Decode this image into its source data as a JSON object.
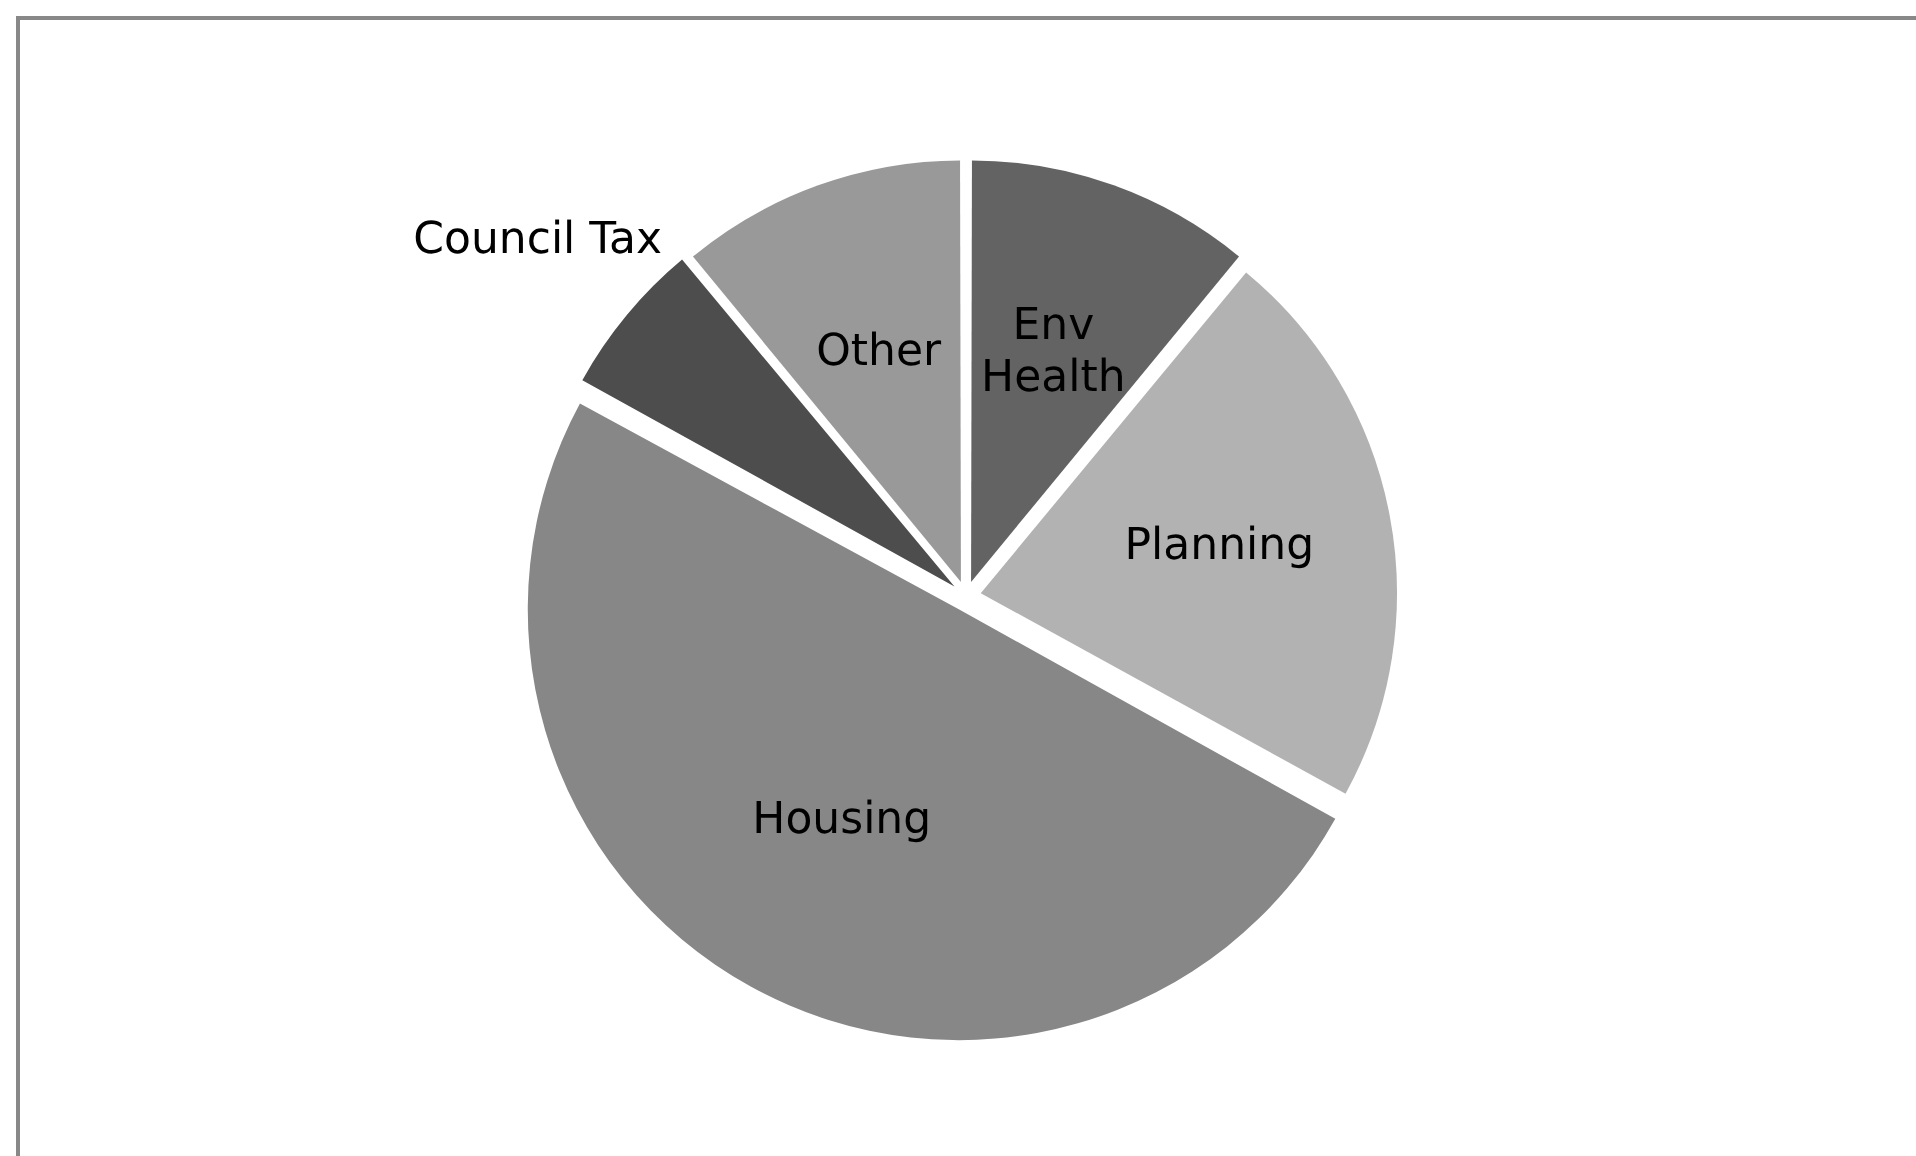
{
  "chart_data": {
    "type": "pie",
    "categories": [
      "Env Health",
      "Planning",
      "Housing",
      "Council Tax",
      "Other"
    ],
    "values": [
      11,
      22,
      50,
      6,
      11
    ],
    "colors": [
      "#636363",
      "#b2b2b2",
      "#878787",
      "#4d4d4d",
      "#999999"
    ],
    "legend": false
  }
}
